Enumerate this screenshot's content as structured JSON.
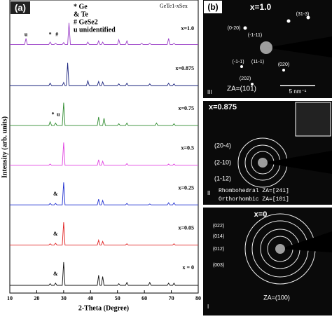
{
  "chart_data": {
    "type": "line",
    "title": "GeTe1-xSex",
    "legend_lines": [
      "* Ge",
      "& Te",
      "# GeSe2",
      "u unidentified"
    ],
    "panel_label": "(a)",
    "xlabel": "2-Theta (Degree)",
    "ylabel": "Intensity (arb. units)",
    "x": [
      10,
      15.5,
      16,
      16.5,
      24.5,
      25,
      25.5,
      26.5,
      27,
      27.5,
      29,
      29.5,
      30,
      30.5,
      31,
      31.5,
      32,
      32.5,
      38.5,
      39,
      39.5,
      42.5,
      43,
      43.5,
      44,
      44.5,
      45,
      45.5,
      50,
      50.5,
      51,
      53,
      53.5,
      54,
      58.5,
      59,
      59.5,
      61.5,
      62,
      62.5,
      64,
      64.5,
      65,
      68.5,
      69,
      69.5,
      70.5,
      71,
      71.5,
      80
    ],
    "xlim": [
      10,
      80
    ],
    "xticks": [
      10,
      20,
      30,
      40,
      50,
      60,
      70,
      80
    ],
    "series": [
      {
        "name": "x=1.0",
        "color": "#9b3fc8",
        "peak_labels": [
          {
            "text": "u",
            "x": 16
          },
          {
            "text": "*",
            "x": 25
          },
          {
            "text": "#",
            "x": 27.5
          }
        ],
        "values": [
          10,
          10,
          35,
          10,
          10,
          20,
          10,
          10,
          15,
          10,
          10,
          10,
          18,
          10,
          10,
          10,
          100,
          10,
          10,
          20,
          10,
          10,
          25,
          10,
          10,
          20,
          10,
          10,
          10,
          30,
          10,
          10,
          25,
          10,
          10,
          15,
          10,
          10,
          15,
          10,
          10,
          10,
          10,
          10,
          35,
          10,
          10,
          15,
          10,
          10
        ]
      },
      {
        "name": "x=0.875",
        "color": "#1a237e",
        "peak_labels": [],
        "values": [
          5,
          5,
          5,
          5,
          5,
          15,
          5,
          5,
          5,
          5,
          5,
          5,
          18,
          5,
          5,
          100,
          5,
          5,
          5,
          25,
          5,
          5,
          22,
          5,
          5,
          20,
          5,
          5,
          5,
          12,
          5,
          5,
          15,
          5,
          5,
          5,
          5,
          5,
          12,
          5,
          5,
          5,
          5,
          5,
          15,
          5,
          5,
          12,
          5,
          5
        ]
      },
      {
        "name": "x=0.75",
        "color": "#2e8b2e",
        "peak_labels": [
          {
            "text": "*",
            "x": 26
          },
          {
            "text": "u",
            "x": 28
          }
        ],
        "values": [
          5,
          5,
          5,
          5,
          5,
          20,
          5,
          5,
          15,
          5,
          5,
          5,
          100,
          5,
          5,
          5,
          5,
          5,
          5,
          5,
          5,
          5,
          40,
          5,
          5,
          5,
          35,
          5,
          5,
          12,
          5,
          5,
          15,
          5,
          5,
          5,
          5,
          5,
          5,
          5,
          5,
          15,
          5,
          5,
          5,
          5,
          5,
          12,
          5,
          5
        ]
      },
      {
        "name": "x=0.5",
        "color": "#e040e0",
        "peak_labels": [],
        "values": [
          5,
          5,
          5,
          5,
          5,
          10,
          5,
          5,
          5,
          5,
          5,
          5,
          100,
          5,
          5,
          5,
          5,
          5,
          5,
          5,
          5,
          5,
          28,
          5,
          5,
          22,
          5,
          5,
          5,
          5,
          5,
          5,
          12,
          5,
          5,
          5,
          5,
          5,
          5,
          5,
          5,
          5,
          5,
          5,
          10,
          5,
          5,
          10,
          5,
          5
        ]
      },
      {
        "name": "x=0.25",
        "color": "#1f2fd0",
        "peak_labels": [
          {
            "text": "&",
            "x": 27
          }
        ],
        "values": [
          6,
          6,
          6,
          6,
          6,
          12,
          6,
          6,
          12,
          6,
          6,
          6,
          100,
          6,
          6,
          6,
          6,
          6,
          6,
          6,
          6,
          6,
          30,
          6,
          6,
          25,
          6,
          6,
          6,
          6,
          6,
          6,
          12,
          6,
          6,
          6,
          6,
          6,
          10,
          6,
          6,
          6,
          6,
          6,
          15,
          6,
          6,
          15,
          6,
          6
        ]
      },
      {
        "name": "x=0.05",
        "color": "#e02020",
        "peak_labels": [
          {
            "text": "&",
            "x": 27
          }
        ],
        "values": [
          5,
          5,
          5,
          5,
          5,
          10,
          5,
          5,
          12,
          5,
          5,
          5,
          100,
          5,
          5,
          5,
          5,
          5,
          5,
          5,
          5,
          5,
          25,
          5,
          5,
          20,
          5,
          5,
          5,
          5,
          5,
          5,
          10,
          5,
          5,
          5,
          5,
          5,
          5,
          5,
          5,
          5,
          5,
          5,
          5,
          5,
          5,
          10,
          5,
          5
        ]
      },
      {
        "name": "x = 0",
        "color": "#111111",
        "peak_labels": [
          {
            "text": "&",
            "x": 27
          }
        ],
        "values": [
          3,
          3,
          3,
          3,
          3,
          10,
          3,
          3,
          12,
          3,
          3,
          3,
          100,
          3,
          3,
          3,
          3,
          3,
          3,
          3,
          3,
          3,
          45,
          3,
          3,
          40,
          3,
          3,
          3,
          10,
          3,
          3,
          15,
          3,
          3,
          3,
          3,
          3,
          15,
          3,
          3,
          3,
          3,
          3,
          12,
          3,
          3,
          12,
          3,
          3
        ]
      }
    ]
  },
  "diffraction_panels": [
    {
      "label": "(b)",
      "composition": "x=1.0",
      "spots": [
        "(0-20)",
        "(-1-11)",
        "(31-3)",
        "(-1-1)",
        "(11-1)",
        "(020)",
        "(202)"
      ],
      "zone_axis": "ZA=(101)",
      "scale": "5 nm⁻¹",
      "numeral": "III"
    },
    {
      "composition": "x=0.875",
      "spots": [
        "(20-4)",
        "(2-10)",
        "(1-12)"
      ],
      "zone_axis_lines": [
        "Rhombohedral ZA=[241]",
        "Orthorhombic ZA=[101]"
      ],
      "numeral": "II"
    },
    {
      "composition": "x=0",
      "spots": [
        "(022)",
        "(014)",
        "(012)",
        "(003)"
      ],
      "zone_axis": "ZA=(100)",
      "numeral": "I"
    }
  ]
}
